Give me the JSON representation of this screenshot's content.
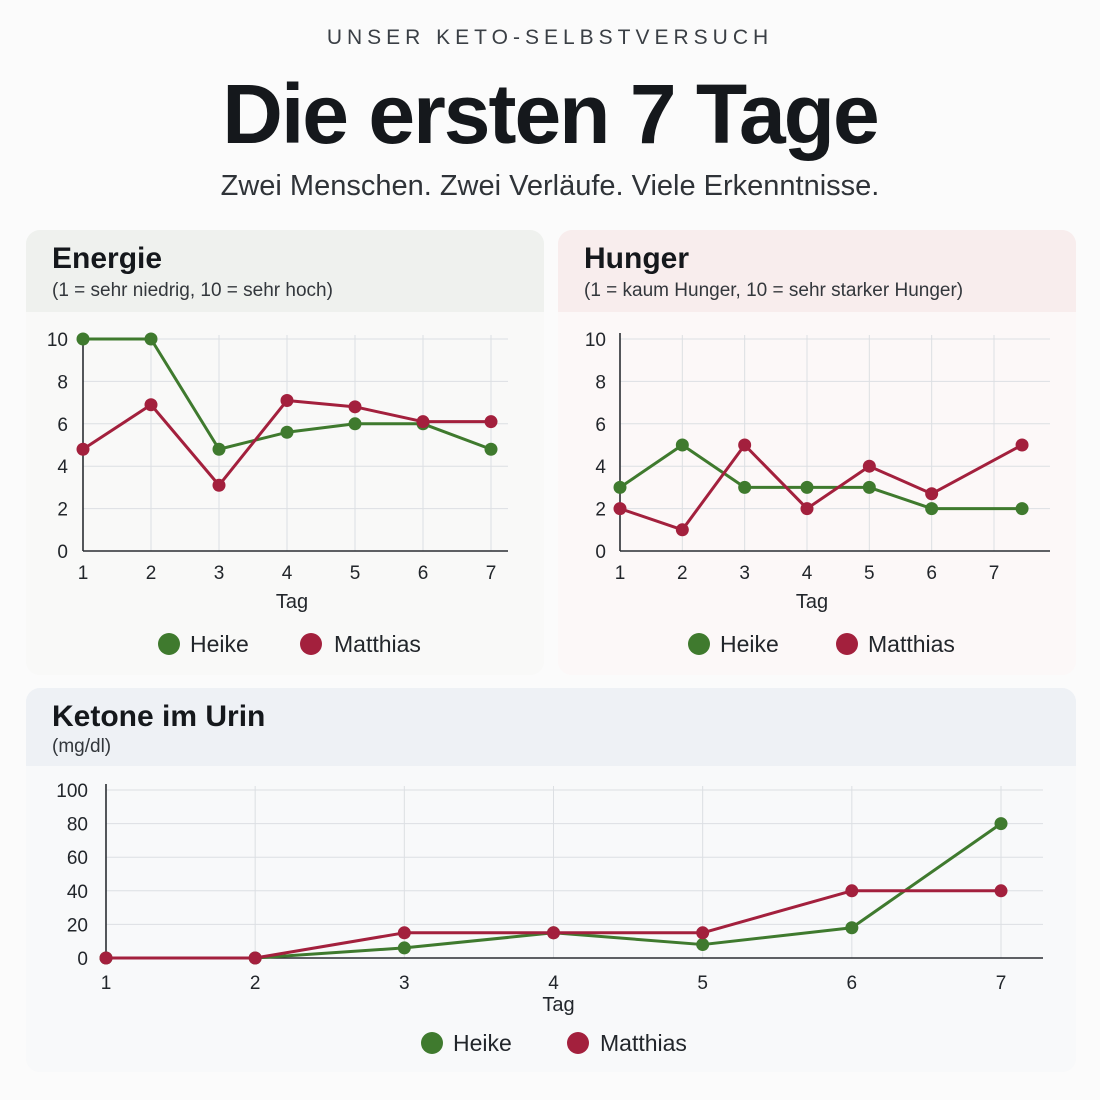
{
  "header": {
    "kicker": "UNSER KETO-SELBSTVERSUCH",
    "title": "Die ersten 7 Tage",
    "subtitle": "Zwei Menschen. Zwei Verläufe. Viele Erkenntnisse."
  },
  "colors": {
    "heike": "#3f7a2e",
    "matthias": "#a3203d",
    "grid": "#dcdfe3",
    "axis": "#2a2e33"
  },
  "chart_data": [
    {
      "id": "energie",
      "type": "line",
      "title": "Energie",
      "subtitle": "(1 = sehr niedrig, 10 = sehr hoch)",
      "xlabel": "Tag",
      "x": [
        1,
        2,
        3,
        4,
        5,
        6,
        7
      ],
      "xlim": [
        1,
        7
      ],
      "ylim": [
        0,
        10
      ],
      "yticks": [
        0,
        2,
        4,
        6,
        8,
        10
      ],
      "grid": true,
      "legend": "bottom",
      "series": [
        {
          "name": "Heike",
          "color": "#3f7a2e",
          "values": [
            10,
            10,
            4.8,
            5.6,
            6,
            6,
            4.8
          ]
        },
        {
          "name": "Matthias",
          "color": "#a3203d",
          "values": [
            4.8,
            6.9,
            3.1,
            7.1,
            6.8,
            6.1,
            6.1
          ]
        }
      ]
    },
    {
      "id": "hunger",
      "type": "line",
      "title": "Hunger",
      "subtitle": "(1 = kaum Hunger, 10 = sehr starker Hunger)",
      "xlabel": "Tag",
      "x": [
        1,
        2,
        3,
        4,
        5,
        6,
        7.45
      ],
      "xlim": [
        1,
        7
      ],
      "ylim": [
        0,
        10
      ],
      "yticks": [
        0,
        2,
        4,
        6,
        8,
        10
      ],
      "grid": true,
      "legend": "bottom",
      "series": [
        {
          "name": "Heike",
          "color": "#3f7a2e",
          "values": [
            3,
            5,
            3,
            3,
            3,
            2,
            2
          ]
        },
        {
          "name": "Matthias",
          "color": "#a3203d",
          "values": [
            2,
            1,
            5,
            2,
            4,
            2.7,
            5
          ]
        }
      ]
    },
    {
      "id": "ketone",
      "type": "line",
      "title": "Ketone im Urin",
      "subtitle": "(mg/dl)",
      "xlabel": "Tag",
      "x": [
        1,
        2,
        3,
        4,
        5,
        6,
        7
      ],
      "xlim": [
        1,
        7
      ],
      "ylim": [
        0,
        100
      ],
      "yticks": [
        0,
        20,
        40,
        60,
        80,
        100
      ],
      "grid": true,
      "legend": "bottom",
      "series": [
        {
          "name": "Heike",
          "color": "#3f7a2e",
          "values": [
            0,
            0,
            6,
            15,
            8,
            18,
            80
          ]
        },
        {
          "name": "Matthias",
          "color": "#a3203d",
          "values": [
            0,
            0,
            15,
            15,
            15,
            40,
            40
          ]
        }
      ]
    }
  ]
}
